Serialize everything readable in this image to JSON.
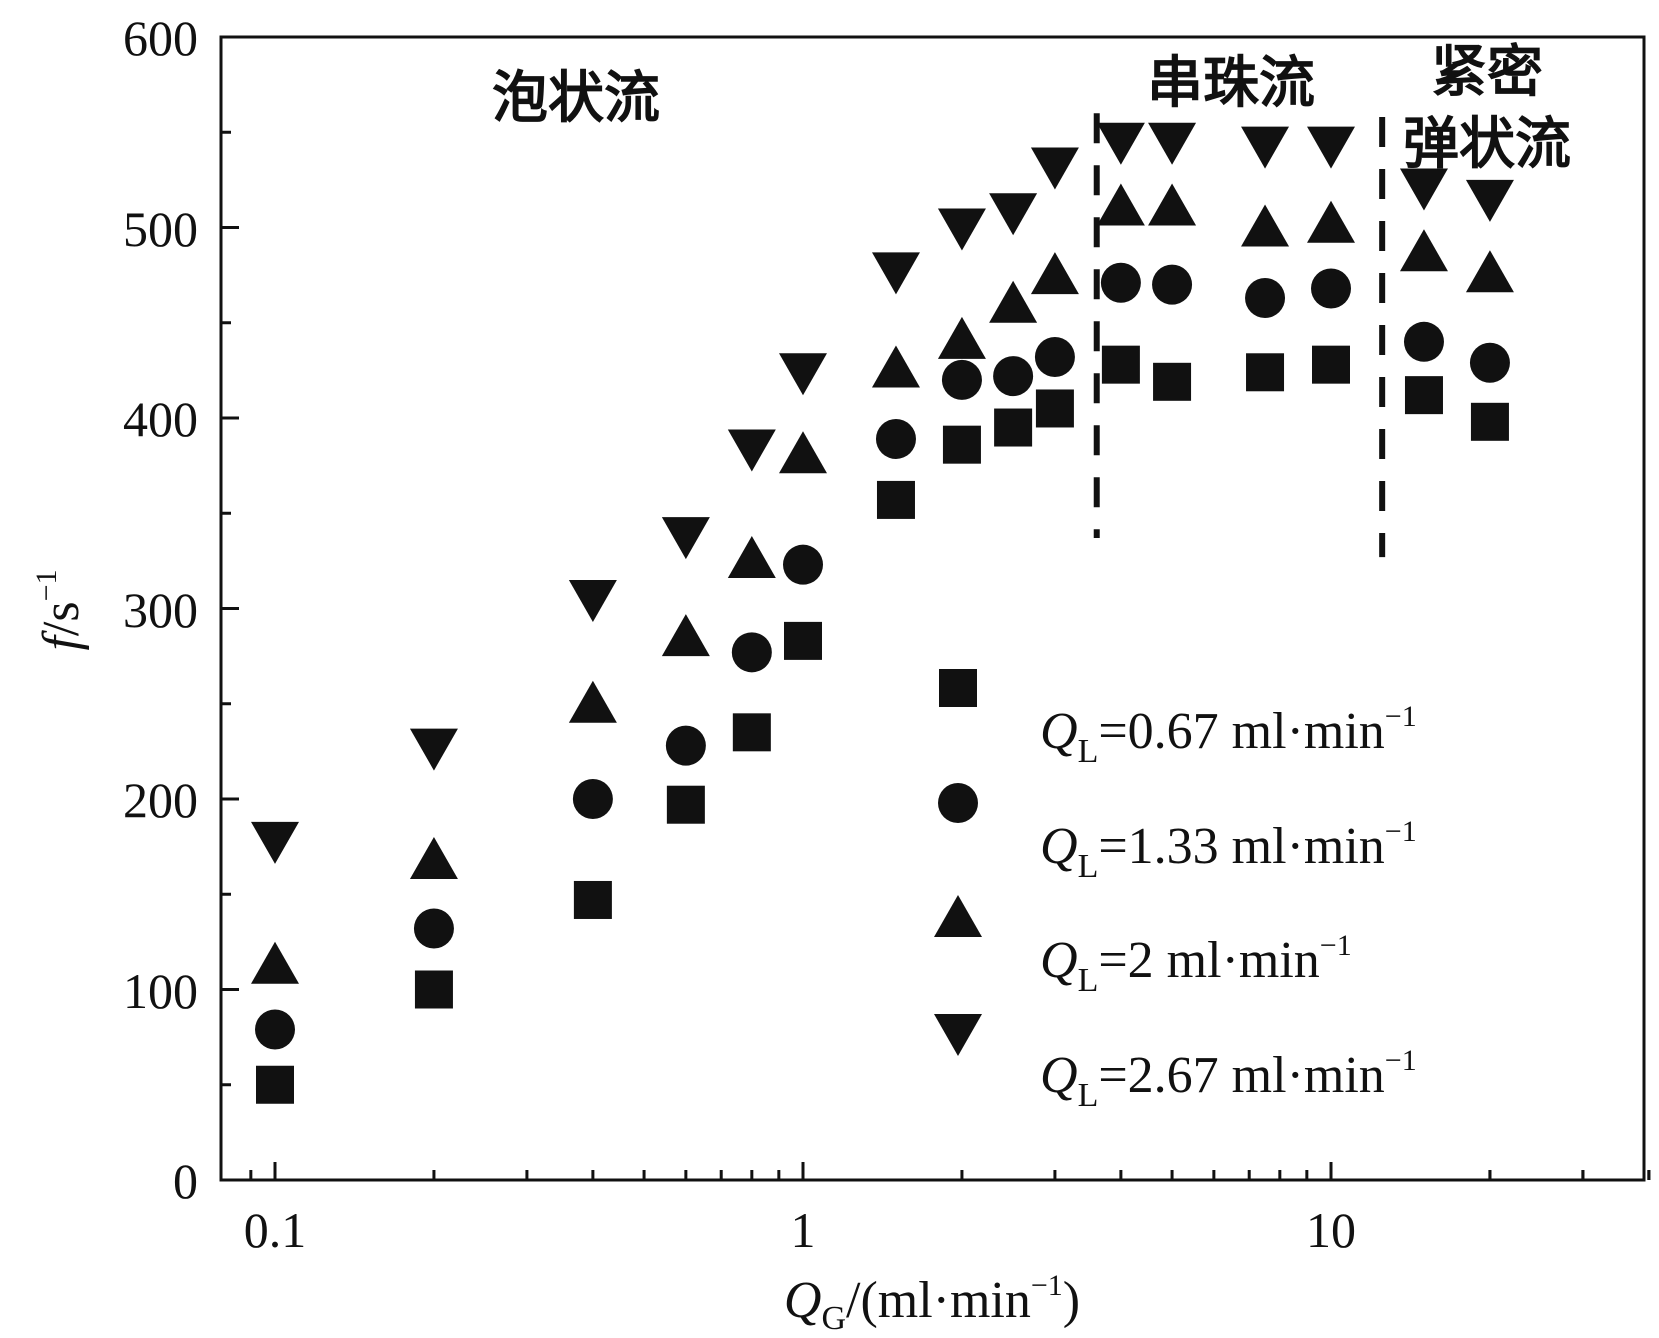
{
  "chart_data": {
    "type": "scatter",
    "xscale": "log",
    "xlim": [
      0.08,
      40
    ],
    "ylim": [
      0,
      600
    ],
    "grid": false,
    "legend_position": "bottom-right",
    "xticks": [
      "0.1",
      "1",
      "10"
    ],
    "yticks": [
      "0",
      "100",
      "200",
      "300",
      "400",
      "500",
      "600"
    ],
    "xlabel": {
      "sym": "Q",
      "sub": "G",
      "rest": "/(ml·min",
      "sup": "−1",
      "close": ")"
    },
    "ylabel": {
      "sym": "f",
      "rest": "/s",
      "sup": "−1"
    },
    "regions": [
      {
        "text": "泡状流"
      },
      {
        "text": "串珠流"
      },
      {
        "line1": "紧密",
        "line2": "弹状流"
      }
    ],
    "region_boundaries": [
      3.6,
      12.5
    ],
    "legend_common": {
      "sym": "Q",
      "sub": "L",
      "unit": "ml·min",
      "sup": "−1"
    },
    "series": [
      {
        "name": "=0.67",
        "marker": "square",
        "x": [
          0.1,
          0.2,
          0.4,
          0.6,
          0.8,
          1.0,
          1.5,
          2.0,
          2.5,
          3.0,
          4.0,
          5.0,
          7.5,
          10,
          15,
          20
        ],
        "y": [
          50,
          100,
          147,
          197,
          235,
          283,
          357,
          386,
          395,
          405,
          428,
          419,
          424,
          428,
          412,
          398
        ]
      },
      {
        "name": "=1.33",
        "marker": "circle",
        "x": [
          0.1,
          0.2,
          0.4,
          0.6,
          0.8,
          1.0,
          1.5,
          2.0,
          2.5,
          3.0,
          4.0,
          5.0,
          7.5,
          10,
          15,
          20
        ],
        "y": [
          79,
          132,
          200,
          228,
          277,
          323,
          389,
          420,
          422,
          432,
          471,
          470,
          463,
          468,
          440,
          429
        ]
      },
      {
        "name": "=2",
        "marker": "triangle-up",
        "x": [
          0.1,
          0.2,
          0.4,
          0.6,
          0.8,
          1.0,
          1.5,
          2.0,
          2.5,
          3.0,
          4.0,
          5.0,
          7.5,
          10,
          15,
          20
        ],
        "y": [
          113,
          168,
          250,
          285,
          326,
          381,
          426,
          441,
          460,
          475,
          511,
          511,
          500,
          502,
          487,
          476
        ]
      },
      {
        "name": "=2.67",
        "marker": "triangle-down",
        "x": [
          0.1,
          0.2,
          0.4,
          0.6,
          0.8,
          1.0,
          1.5,
          2.0,
          2.5,
          3.0,
          4.0,
          5.0,
          7.5,
          10,
          15,
          20
        ],
        "y": [
          178,
          227,
          305,
          338,
          384,
          424,
          477,
          500,
          508,
          532,
          545,
          545,
          543,
          543,
          521,
          515
        ]
      }
    ]
  }
}
